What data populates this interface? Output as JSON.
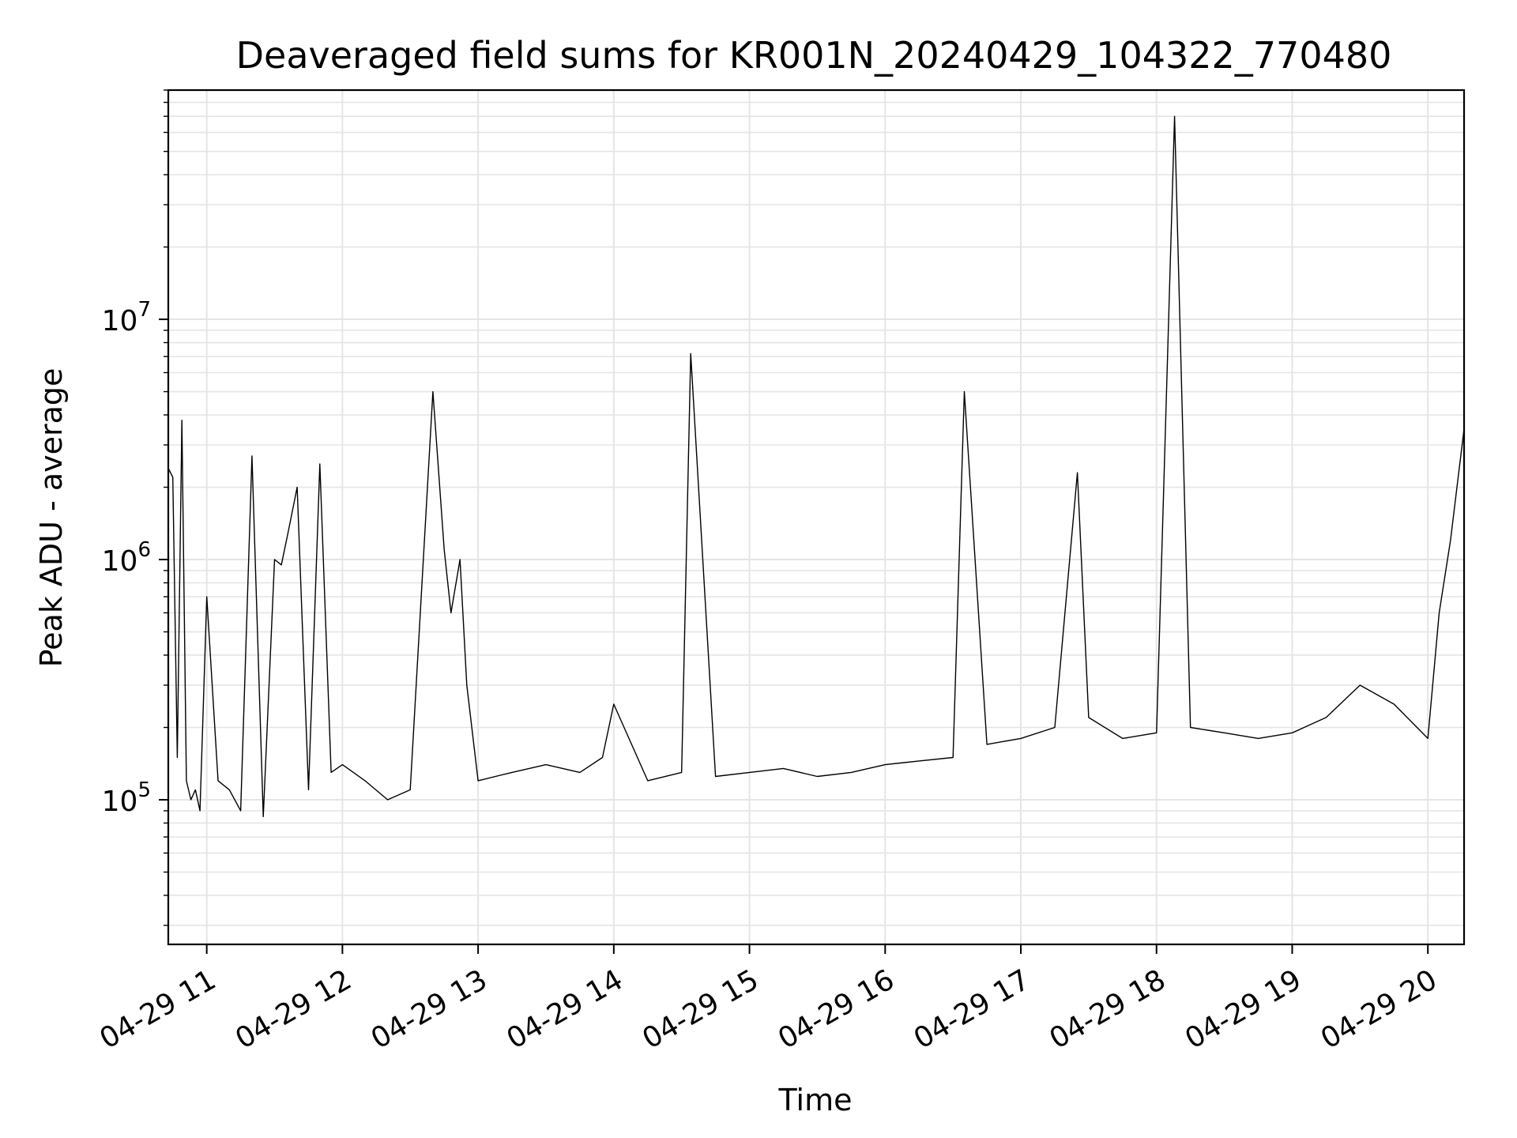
{
  "chart_data": {
    "type": "line",
    "title": "Deaveraged field sums for KR001N_20240429_104322_770480",
    "xlabel": "Time",
    "ylabel": "Peak ADU - average",
    "y_scale": "log",
    "ylim": [
      25000,
      90000000
    ],
    "xlim": [
      "2024-04-29 10:43",
      "2024-04-29 20:16"
    ],
    "x_ticks": [
      "04-29 11",
      "04-29 12",
      "04-29 13",
      "04-29 14",
      "04-29 15",
      "04-29 16",
      "04-29 17",
      "04-29 18",
      "04-29 19",
      "04-29 20"
    ],
    "y_ticks": [
      {
        "base": "10",
        "exp": "5",
        "value": 100000
      },
      {
        "base": "10",
        "exp": "6",
        "value": 1000000
      },
      {
        "base": "10",
        "exp": "7",
        "value": 10000000
      }
    ],
    "grid": true,
    "line_color": "#000000",
    "grid_color": "#e5e5e5",
    "series": [
      {
        "x": [
          "2024-04-29 10:43",
          "2024-04-29 10:45",
          "2024-04-29 10:47",
          "2024-04-29 10:49",
          "2024-04-29 10:51",
          "2024-04-29 10:53",
          "2024-04-29 10:55",
          "2024-04-29 10:57",
          "2024-04-29 11:00",
          "2024-04-29 11:05",
          "2024-04-29 11:10",
          "2024-04-29 11:15",
          "2024-04-29 11:20",
          "2024-04-29 11:25",
          "2024-04-29 11:30",
          "2024-04-29 11:33",
          "2024-04-29 11:36",
          "2024-04-29 11:40",
          "2024-04-29 11:45",
          "2024-04-29 11:50",
          "2024-04-29 11:55",
          "2024-04-29 12:00",
          "2024-04-29 12:10",
          "2024-04-29 12:20",
          "2024-04-29 12:30",
          "2024-04-29 12:40",
          "2024-04-29 12:45",
          "2024-04-29 12:48",
          "2024-04-29 12:52",
          "2024-04-29 12:55",
          "2024-04-29 13:00",
          "2024-04-29 13:15",
          "2024-04-29 13:30",
          "2024-04-29 13:45",
          "2024-04-29 13:55",
          "2024-04-29 14:00",
          "2024-04-29 14:15",
          "2024-04-29 14:30",
          "2024-04-29 14:34",
          "2024-04-29 14:45",
          "2024-04-29 15:00",
          "2024-04-29 15:15",
          "2024-04-29 15:30",
          "2024-04-29 15:45",
          "2024-04-29 16:00",
          "2024-04-29 16:15",
          "2024-04-29 16:30",
          "2024-04-29 16:35",
          "2024-04-29 16:45",
          "2024-04-29 17:00",
          "2024-04-29 17:15",
          "2024-04-29 17:25",
          "2024-04-29 17:30",
          "2024-04-29 17:45",
          "2024-04-29 18:00",
          "2024-04-29 18:08",
          "2024-04-29 18:15",
          "2024-04-29 18:30",
          "2024-04-29 18:45",
          "2024-04-29 19:00",
          "2024-04-29 19:15",
          "2024-04-29 19:30",
          "2024-04-29 19:45",
          "2024-04-29 20:00",
          "2024-04-29 20:05",
          "2024-04-29 20:10",
          "2024-04-29 20:16"
        ],
        "values": [
          2400000,
          2200000,
          150000,
          3800000,
          120000,
          100000,
          110000,
          90000,
          700000,
          120000,
          110000,
          90000,
          2700000,
          85000,
          1000000,
          950000,
          1300000,
          2000000,
          110000,
          2500000,
          130000,
          140000,
          120000,
          100000,
          110000,
          5000000,
          1100000,
          600000,
          1000000,
          300000,
          120000,
          130000,
          140000,
          130000,
          150000,
          250000,
          120000,
          130000,
          7200000,
          125000,
          130000,
          135000,
          125000,
          130000,
          140000,
          145000,
          150000,
          5000000,
          170000,
          180000,
          200000,
          2300000,
          220000,
          180000,
          190000,
          70000000,
          200000,
          190000,
          180000,
          190000,
          220000,
          300000,
          250000,
          180000,
          600000,
          1200000,
          3500000
        ]
      }
    ]
  }
}
